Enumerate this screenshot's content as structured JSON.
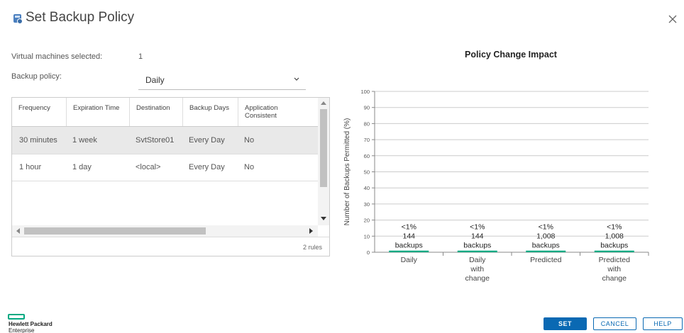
{
  "dialog": {
    "title": "Set Backup Policy"
  },
  "form": {
    "vm_label": "Virtual machines selected:",
    "vm_value": "1",
    "policy_label": "Backup policy:",
    "policy_value": "Daily"
  },
  "grid": {
    "columns": [
      "Frequency",
      "Expiration Time",
      "Destination",
      "Backup Days",
      "Application Consistent"
    ],
    "rows": [
      [
        "30 minutes",
        "1 week",
        "SvtStore01",
        "Every Day",
        "No"
      ],
      [
        "1 hour",
        "1 day",
        "<local>",
        "Every Day",
        "No"
      ]
    ],
    "footer": "2 rules"
  },
  "chart_data": {
    "type": "bar",
    "title": "Policy Change Impact",
    "ylabel": "Number of Backups Permitted (%)",
    "xlabel": "",
    "ylim": [
      0,
      100
    ],
    "yticks": [
      0,
      10,
      20,
      30,
      40,
      50,
      60,
      70,
      80,
      90,
      100
    ],
    "grid": true,
    "categories": [
      "Daily",
      "Daily with change",
      "Predicted",
      "Predicted with change"
    ],
    "values": [
      1,
      1,
      1,
      1
    ],
    "annotations": [
      [
        "<1%",
        "144",
        "backups"
      ],
      [
        "<1%",
        "144",
        "backups"
      ],
      [
        "<1%",
        "1,008",
        "backups"
      ],
      [
        "<1%",
        "1,008",
        "backups"
      ]
    ]
  },
  "brand": {
    "line1": "Hewlett Packard",
    "line2": "Enterprise",
    "color": "#01a982"
  },
  "buttons": {
    "set": "SET",
    "cancel": "CANCEL",
    "help": "HELP"
  },
  "colors": {
    "accent": "#0a69b3"
  }
}
